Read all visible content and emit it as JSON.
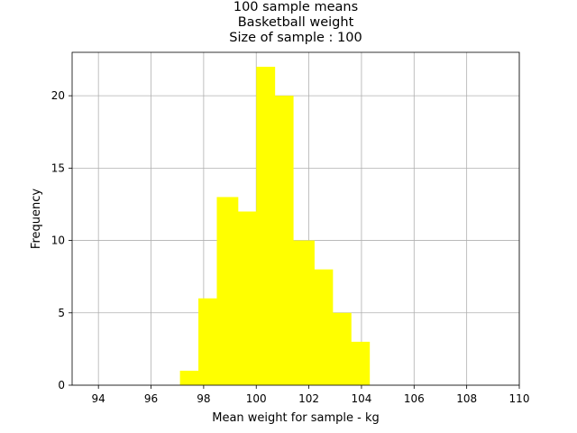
{
  "chart_data": {
    "type": "bar",
    "title_lines": [
      "100 sample means",
      "Basketball weight",
      "Size of sample : 100"
    ],
    "xlabel": "Mean weight for sample - kg",
    "ylabel": "Frequency",
    "xlim": [
      93,
      110
    ],
    "ylim": [
      0,
      23
    ],
    "x_ticks": [
      94,
      96,
      98,
      100,
      102,
      104,
      106,
      108,
      110
    ],
    "y_ticks": [
      0,
      5,
      10,
      15,
      20
    ],
    "grid": true,
    "bar_color": "#ffff00",
    "bins": [
      {
        "x0": 97.1,
        "x1": 97.8,
        "value": 1
      },
      {
        "x0": 97.8,
        "x1": 98.5,
        "value": 6
      },
      {
        "x0": 98.5,
        "x1": 99.3,
        "value": 13
      },
      {
        "x0": 99.3,
        "x1": 100.0,
        "value": 12
      },
      {
        "x0": 100.0,
        "x1": 100.7,
        "value": 22
      },
      {
        "x0": 100.7,
        "x1": 101.4,
        "value": 20
      },
      {
        "x0": 101.4,
        "x1": 102.2,
        "value": 10
      },
      {
        "x0": 102.2,
        "x1": 102.9,
        "value": 8
      },
      {
        "x0": 102.9,
        "x1": 103.6,
        "value": 5
      },
      {
        "x0": 103.6,
        "x1": 104.3,
        "value": 3
      }
    ]
  }
}
